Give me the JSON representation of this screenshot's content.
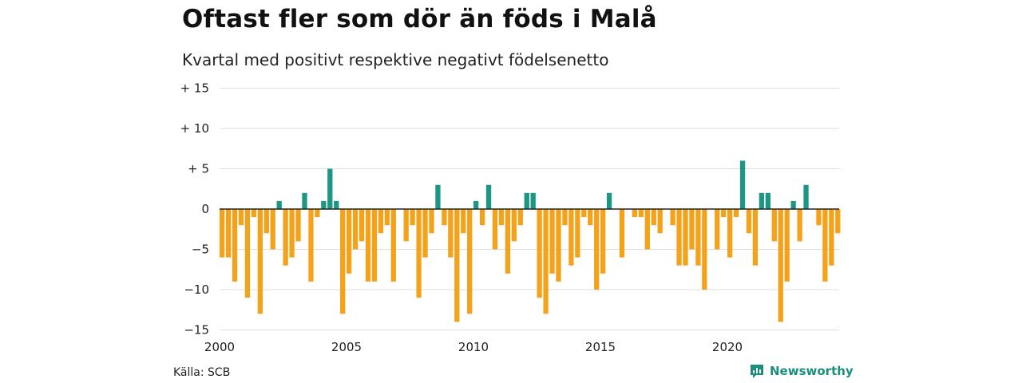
{
  "header": {
    "title": "Oftast fler som dör än föds i Malå",
    "subtitle": "Kvartal med positivt respektive negativt födelsenetto"
  },
  "footer": {
    "source": "Källa: SCB",
    "brand": "Newsworthy",
    "brand_icon": "newsworthy-logo-icon"
  },
  "colors": {
    "positive": "#1b9783",
    "negative": "#f5a21b",
    "grid": "#dddddd",
    "zero_line": "#222222"
  },
  "chart_data": {
    "type": "bar",
    "title": "Oftast fler som dör än föds i Malå",
    "subtitle": "Kvartal med positivt respektive negativt födelsenetto",
    "xlabel": "",
    "ylabel": "",
    "x_start": "2000 Q1",
    "x_ticks": [
      "2000",
      "2005",
      "2010",
      "2015",
      "2020"
    ],
    "y_ticks": [
      "+ 15",
      "+ 10",
      "+  5",
      "0",
      "−5",
      "−10",
      "−15"
    ],
    "ylim": [
      -15,
      15
    ],
    "grid": true,
    "values": [
      -6,
      -6,
      -9,
      -2,
      -11,
      -1,
      -13,
      -3,
      -5,
      1,
      -7,
      -6,
      -4,
      2,
      -9,
      -1,
      1,
      5,
      1,
      -13,
      -8,
      -5,
      -4,
      -9,
      -9,
      -3,
      -2,
      -9,
      0,
      -4,
      -2,
      -11,
      -6,
      -3,
      3,
      -2,
      -6,
      -14,
      -3,
      -13,
      1,
      -2,
      3,
      -5,
      -2,
      -8,
      -4,
      -2,
      2,
      2,
      -11,
      -13,
      -8,
      -9,
      -2,
      -7,
      -6,
      -1,
      -2,
      -10,
      -8,
      2,
      0,
      -6,
      0,
      -1,
      -1,
      -5,
      -2,
      -3,
      0,
      -2,
      -7,
      -7,
      -5,
      -7,
      -10,
      0,
      -5,
      -1,
      -6,
      -1,
      6,
      -3,
      -7,
      2,
      2,
      -4,
      -14,
      -9,
      1,
      -4,
      3,
      0,
      -2,
      -9,
      -7,
      -3
    ]
  }
}
